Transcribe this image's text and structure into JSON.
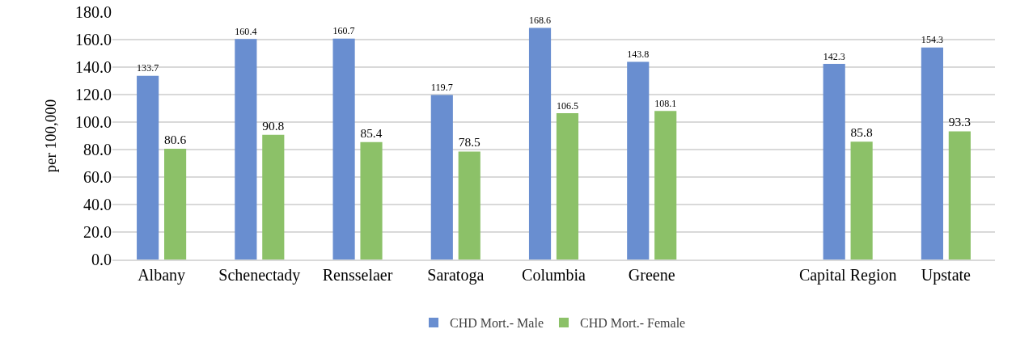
{
  "chart_data": {
    "type": "bar",
    "ylabel": "per 100,000",
    "categories": [
      "Albany",
      "Schenectady",
      "Rensselaer",
      "Saratoga",
      "Columbia",
      "Greene",
      null,
      "Capital Region",
      "Upstate"
    ],
    "series": [
      {
        "name": "CHD Mort.- Male",
        "color": "#698ed0",
        "values": [
          133.7,
          160.4,
          160.7,
          119.7,
          168.6,
          143.8,
          null,
          142.3,
          154.3
        ]
      },
      {
        "name": "CHD Mort.- Female",
        "color": "#8cc168",
        "values": [
          80.6,
          90.8,
          85.4,
          78.5,
          106.5,
          108.1,
          null,
          85.8,
          93.3
        ]
      }
    ],
    "ylim": [
      0,
      180
    ],
    "yticks": [
      {
        "value": 0,
        "label": "0.0"
      },
      {
        "value": 20,
        "label": "20.0"
      },
      {
        "value": 40,
        "label": "40.0"
      },
      {
        "value": 60,
        "label": "60.0"
      },
      {
        "value": 80,
        "label": "80.0"
      },
      {
        "value": 100,
        "label": "100.0"
      },
      {
        "value": 120,
        "label": "120.0"
      },
      {
        "value": 140,
        "label": "140.0"
      },
      {
        "value": 160,
        "label": "160.0"
      },
      {
        "value": 180,
        "label": "180.0"
      }
    ],
    "grid": "y",
    "legend": "bottom",
    "data_labels": true
  }
}
